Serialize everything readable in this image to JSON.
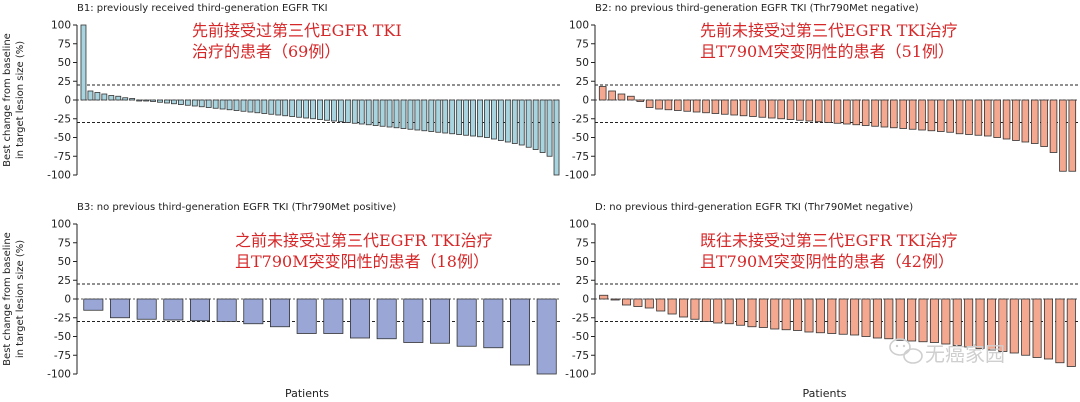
{
  "chart_data": [
    {
      "id": "B1",
      "type": "bar",
      "title": "B1: previously received third-generation EGFR TKI",
      "annotation": [
        "先前接受过第三代EGFR TKI",
        "治疗的患者（69例）"
      ],
      "ylabel": [
        "Best change from baseline",
        "in target lesion size (%)"
      ],
      "xlabel": "",
      "ylim": [
        -100,
        100
      ],
      "yticks": [
        100,
        75,
        50,
        25,
        0,
        -25,
        -50,
        -75,
        -100
      ],
      "reference_lines": [
        20,
        -30
      ],
      "bar_color": "#a7d4df",
      "values": [
        100,
        12,
        10,
        8,
        6,
        5,
        3,
        2,
        0,
        -1,
        -2,
        -3,
        -4,
        -5,
        -6,
        -7,
        -8,
        -9,
        -10,
        -11,
        -12,
        -13,
        -14,
        -15,
        -16,
        -17,
        -18,
        -19,
        -20,
        -21,
        -22,
        -23,
        -24,
        -25,
        -26,
        -27,
        -28,
        -29,
        -30,
        -31,
        -32,
        -33,
        -34,
        -35,
        -36,
        -37,
        -38,
        -39,
        -40,
        -41,
        -42,
        -43,
        -44,
        -45,
        -46,
        -47,
        -48,
        -49,
        -50,
        -52,
        -54,
        -56,
        -58,
        -60,
        -63,
        -66,
        -70,
        -75,
        -100
      ]
    },
    {
      "id": "B2",
      "type": "bar",
      "title": "B2: no previous third-generation EGFR TKI (Thr790Met negative)",
      "annotation": [
        "先前未接受过第三代EGFR TKI治疗",
        "且T790M突变阴性的患者（51例）"
      ],
      "ylabel": [],
      "xlabel": "",
      "ylim": [
        -100,
        100
      ],
      "yticks": [
        100,
        75,
        50,
        25,
        0,
        -25,
        -50,
        -75,
        -100
      ],
      "reference_lines": [
        20,
        -30
      ],
      "bar_color": "#f3a88f",
      "values": [
        18,
        12,
        8,
        5,
        -2,
        -10,
        -12,
        -13,
        -14,
        -15,
        -16,
        -17,
        -18,
        -19,
        -20,
        -21,
        -22,
        -23,
        -24,
        -25,
        -26,
        -27,
        -28,
        -29,
        -30,
        -31,
        -32,
        -33,
        -34,
        -35,
        -36,
        -37,
        -38,
        -39,
        -40,
        -41,
        -42,
        -43,
        -45,
        -46,
        -47,
        -48,
        -50,
        -52,
        -54,
        -56,
        -58,
        -62,
        -70,
        -95,
        -95
      ]
    },
    {
      "id": "B3",
      "type": "bar",
      "title": "B3: no previous third-generation EGFR TKI (Thr790Met positive)",
      "annotation": [
        "之前未接受过第三代EGFR TKI治疗",
        "且T790M突变阳性的患者（18例）"
      ],
      "ylabel": [
        "Best change from baseline",
        "in target lesion size (%)"
      ],
      "xlabel": "Patients",
      "ylim": [
        -100,
        100
      ],
      "yticks": [
        100,
        75,
        50,
        25,
        0,
        -25,
        -50,
        -75,
        -100
      ],
      "reference_lines": [
        20,
        -30
      ],
      "bar_color": "#9aa7d6",
      "values": [
        -15,
        -25,
        -27,
        -28,
        -29,
        -30,
        -33,
        -37,
        -46,
        -46,
        -52,
        -53,
        -58,
        -59,
        -63,
        -65,
        -88,
        -100
      ]
    },
    {
      "id": "D",
      "type": "bar",
      "title": "D: no previous third-generation EGFR TKI (Thr790Met negative)",
      "annotation": [
        "既往未接受过第三代EGFR TKI治疗",
        "且T790M突变阴性的患者（42例）"
      ],
      "ylabel": [],
      "xlabel": "Patients",
      "ylim": [
        -100,
        100
      ],
      "yticks": [
        100,
        75,
        50,
        25,
        0,
        -25,
        -50,
        -75,
        -100
      ],
      "reference_lines": [
        20,
        -30
      ],
      "bar_color": "#f3a88f",
      "values": [
        5,
        0,
        -8,
        -10,
        -12,
        -16,
        -20,
        -24,
        -27,
        -30,
        -32,
        -33,
        -35,
        -37,
        -38,
        -40,
        -41,
        -42,
        -44,
        -45,
        -46,
        -47,
        -48,
        -50,
        -52,
        -53,
        -55,
        -56,
        -57,
        -58,
        -60,
        -62,
        -64,
        -66,
        -68,
        -70,
        -72,
        -75,
        -78,
        -80,
        -85,
        -90
      ]
    }
  ],
  "watermark": "无癌家园"
}
